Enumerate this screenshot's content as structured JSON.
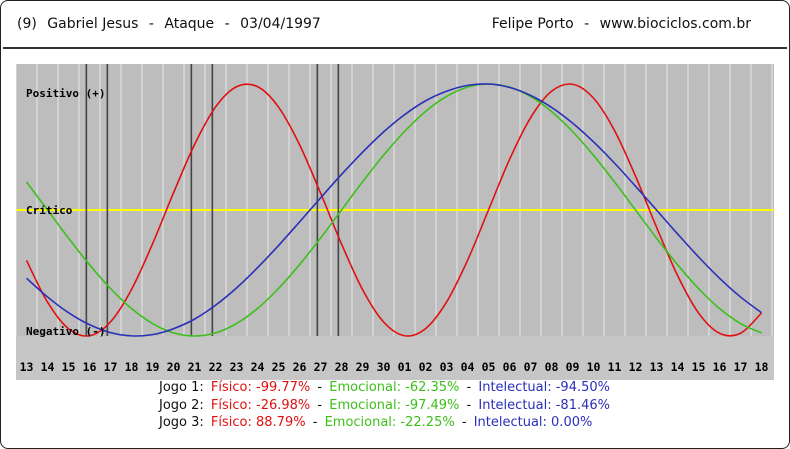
{
  "header": {
    "number": "(9)",
    "name": "Gabriel Jesus",
    "dash": "-",
    "position": "Ataque",
    "dash2": "-",
    "birthdate": "03/04/1997",
    "author": "Felipe Porto",
    "dash3": "-",
    "website": "www.biociclos.com.br"
  },
  "chart_data": {
    "type": "line",
    "labels": {
      "positive": "Positivo (+)",
      "critical": "Crítico",
      "negative": "Negativo (-)"
    },
    "x": [
      "13",
      "14",
      "15",
      "16",
      "17",
      "18",
      "19",
      "20",
      "21",
      "22",
      "23",
      "24",
      "25",
      "26",
      "27",
      "28",
      "29",
      "30",
      "01",
      "02",
      "03",
      "04",
      "05",
      "06",
      "07",
      "08",
      "09",
      "10",
      "11",
      "12",
      "13",
      "14",
      "15",
      "16",
      "17",
      "18"
    ],
    "ylim": [
      -100,
      100
    ],
    "grid": true,
    "game_markers": [
      "16",
      "17",
      "21",
      "22",
      "27",
      "28"
    ],
    "series": [
      {
        "key": "fisico",
        "color": "#e01010",
        "values": [
          -40.0,
          -73.1,
          -94.2,
          -99.8,
          -88.8,
          -63.1,
          -26.9,
          13.6,
          51.9,
          81.7,
          97.8,
          97.9,
          81.7,
          51.9,
          13.6,
          -26.9,
          -63.1,
          -88.8,
          -99.8,
          -94.2,
          -73.1,
          -40.0,
          0.0,
          40.0,
          73.1,
          94.2,
          99.8,
          88.8,
          63.1,
          26.9,
          -13.6,
          -51.9,
          -81.7,
          -97.8,
          -97.8,
          -81.7
        ]
      },
      {
        "key": "emocional",
        "color": "#3cbf1a",
        "values": [
          22.3,
          -0.0,
          -22.3,
          -43.4,
          -62.3,
          -78.2,
          -90.1,
          -97.5,
          -100.0,
          -97.5,
          -90.1,
          -78.2,
          -62.3,
          -43.4,
          -22.3,
          0.0,
          22.3,
          43.4,
          62.3,
          78.2,
          90.1,
          97.5,
          100.0,
          97.5,
          90.1,
          78.2,
          62.3,
          43.4,
          22.3,
          0.0,
          -22.3,
          -43.4,
          -62.3,
          -78.2,
          -90.1,
          -97.5
        ]
      },
      {
        "key": "intelectual",
        "color": "#2a2fb8",
        "values": [
          -54.1,
          -69.0,
          -81.5,
          -91.0,
          -97.3,
          -99.9,
          -98.9,
          -94.2,
          -86.6,
          -75.6,
          -61.9,
          -45.8,
          -28.2,
          -9.5,
          9.5,
          28.2,
          45.8,
          61.9,
          75.6,
          86.6,
          94.2,
          98.9,
          100.0,
          97.3,
          91.0,
          81.5,
          69.0,
          54.1,
          37.2,
          18.9,
          0.0,
          -18.9,
          -37.2,
          -54.1,
          -69.0,
          -81.5
        ]
      }
    ]
  },
  "games": [
    {
      "label": "Jogo 1:",
      "fisico": "Físico: -99.77%",
      "sep1": "-",
      "emocional": "Emocional: -62.35%",
      "sep2": "-",
      "intelectual": "Intelectual: -94.50%"
    },
    {
      "label": "Jogo 2:",
      "fisico": "Físico: -26.98%",
      "sep1": "-",
      "emocional": "Emocional: -97.49%",
      "sep2": "-",
      "intelectual": "Intelectual: -81.46%"
    },
    {
      "label": "Jogo 3:",
      "fisico": "Físico: 88.79%",
      "sep1": "-",
      "emocional": "Emocional: -22.25%",
      "sep2": "-",
      "intelectual": "Intelectual: 0.00%"
    }
  ]
}
